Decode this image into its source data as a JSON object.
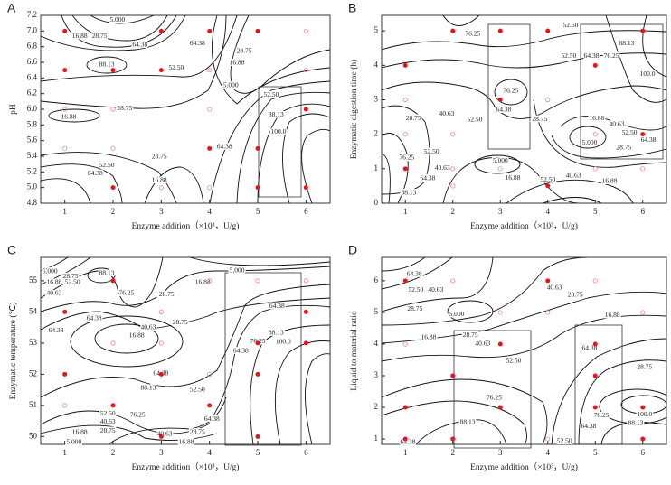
{
  "chart_data": [
    {
      "type": "contour",
      "panel_label": "A",
      "x_label": "Enzyme addition（×10³，U/g)",
      "y_label": "pH",
      "xlim": [
        0.5,
        6.5
      ],
      "xticks": [
        1,
        2,
        3,
        4,
        5,
        6
      ],
      "ylim": [
        4.8,
        7.2
      ],
      "yticks": [
        4.8,
        {
          "value": 5,
          "label": "5.0"
        },
        5.2,
        5.4,
        5.6,
        5.8,
        {
          "value": 6,
          "label": "6.0"
        },
        6.2,
        6.4,
        6.6,
        6.8,
        {
          "value": 7,
          "label": "7.0"
        },
        7.2
      ],
      "series": [
        {
          "color": "#e8141c",
          "marker": "filled",
          "x": [
            1,
            3,
            4,
            5,
            1,
            2,
            3,
            6,
            4,
            5,
            2,
            5,
            6
          ],
          "values": [
            7.0,
            7.0,
            7.0,
            7.0,
            6.5,
            6.5,
            6.5,
            6.0,
            5.5,
            5.5,
            5.0,
            5.0,
            5.0
          ]
        },
        {
          "color": "#f08a8a",
          "marker": "hollow",
          "x": [
            6,
            4,
            6,
            1,
            2,
            4,
            1,
            2,
            3,
            4
          ],
          "values": [
            7.0,
            6.5,
            6.5,
            6.0,
            6.0,
            6.0,
            5.5,
            5.5,
            5.0,
            5.0
          ]
        }
      ],
      "contour_labels": [
        {
          "text": "5.000",
          "x": 2.09,
          "y": 7.14
        },
        {
          "text": "28.75",
          "x": 1.72,
          "y": 6.93
        },
        {
          "text": "16.88",
          "x": 1.31,
          "y": 6.93
        },
        {
          "text": "64.38",
          "x": 2.56,
          "y": 6.82
        },
        {
          "text": "88.13",
          "x": 1.87,
          "y": 6.57
        },
        {
          "text": "52.50",
          "x": 3.31,
          "y": 6.53
        },
        {
          "text": "64.38",
          "x": 3.75,
          "y": 6.84
        },
        {
          "text": "28.75",
          "x": 4.72,
          "y": 6.74
        },
        {
          "text": "16.88",
          "x": 4.57,
          "y": 6.59
        },
        {
          "text": "5.000",
          "x": 4.44,
          "y": 6.3
        },
        {
          "text": "52.50",
          "x": 5.28,
          "y": 6.18
        },
        {
          "text": "88.13",
          "x": 5.38,
          "y": 5.93
        },
        {
          "text": "100.0",
          "x": 5.43,
          "y": 5.71
        },
        {
          "text": "28.75",
          "x": 2.24,
          "y": 6.01
        },
        {
          "text": "16.88",
          "x": 1.08,
          "y": 5.9
        },
        {
          "text": "28.75",
          "x": 2.96,
          "y": 5.39
        },
        {
          "text": "52.50",
          "x": 1.87,
          "y": 5.28
        },
        {
          "text": "64.38",
          "x": 1.63,
          "y": 5.18
        },
        {
          "text": "16.88",
          "x": 2.96,
          "y": 5.09
        },
        {
          "text": "64.38",
          "x": 4.31,
          "y": 5.52
        }
      ]
    },
    {
      "type": "contour",
      "panel_label": "B",
      "x_label": "Enzyme addition（×10³，U/g)",
      "y_label": "Enzymatic digestion time (h)",
      "xlim": [
        0.5,
        6.5
      ],
      "xticks": [
        1,
        2,
        3,
        4,
        5,
        6
      ],
      "ylim": [
        0,
        5.45
      ],
      "yticks": [
        0,
        1,
        2,
        3,
        4,
        5
      ],
      "series": [
        {
          "color": "#e8141c",
          "marker": "filled",
          "x": [
            2,
            3,
            4,
            6,
            1,
            5,
            3,
            6,
            1,
            4
          ],
          "values": [
            5,
            5,
            5,
            5,
            4,
            4,
            3,
            2,
            1,
            0.5
          ]
        },
        {
          "color": "#f08a8a",
          "marker": "hollow",
          "x": [
            1,
            1,
            2,
            4,
            5,
            2,
            3,
            5,
            6,
            2
          ],
          "values": [
            3,
            2,
            2,
            3,
            2,
            1,
            1,
            1,
            1,
            0.5
          ]
        }
      ],
      "contour_labels": [
        {
          "text": "76.25",
          "x": 2.42,
          "y": 4.9
        },
        {
          "text": "52.50",
          "x": 4.48,
          "y": 5.16
        },
        {
          "text": "88.13",
          "x": 5.66,
          "y": 4.63
        },
        {
          "text": "52.50",
          "x": 4.44,
          "y": 4.27
        },
        {
          "text": "64.38",
          "x": 4.92,
          "y": 4.27
        },
        {
          "text": "76.25",
          "x": 5.34,
          "y": 4.27
        },
        {
          "text": "100.0",
          "x": 6.1,
          "y": 3.74
        },
        {
          "text": "76.25",
          "x": 3.22,
          "y": 3.25
        },
        {
          "text": "64.38",
          "x": 3.07,
          "y": 2.7
        },
        {
          "text": "52.50",
          "x": 2.46,
          "y": 2.41
        },
        {
          "text": "28.75",
          "x": 1.17,
          "y": 2.46
        },
        {
          "text": "40.63",
          "x": 1.87,
          "y": 2.59
        },
        {
          "text": "28.75",
          "x": 3.83,
          "y": 2.43
        },
        {
          "text": "16.88",
          "x": 5.03,
          "y": 2.46
        },
        {
          "text": "40.63",
          "x": 5.45,
          "y": 2.28
        },
        {
          "text": "52.50",
          "x": 5.72,
          "y": 2.04
        },
        {
          "text": "64.38",
          "x": 6.12,
          "y": 1.83
        },
        {
          "text": "5.000",
          "x": 4.88,
          "y": 1.75
        },
        {
          "text": "28.75",
          "x": 5.6,
          "y": 1.6
        },
        {
          "text": "52.50",
          "x": 1.55,
          "y": 1.49
        },
        {
          "text": "76.25",
          "x": 1.03,
          "y": 1.31
        },
        {
          "text": "40.63",
          "x": 1.78,
          "y": 1.02
        },
        {
          "text": "64.38",
          "x": 1.47,
          "y": 0.71
        },
        {
          "text": "88.13",
          "x": 1.07,
          "y": 0.29
        },
        {
          "text": "5.000",
          "x": 3.0,
          "y": 1.23
        },
        {
          "text": "16.88",
          "x": 3.26,
          "y": 0.73
        },
        {
          "text": "52.50",
          "x": 4.0,
          "y": 0.68
        },
        {
          "text": "40.63",
          "x": 4.54,
          "y": 0.79
        },
        {
          "text": "16.88",
          "x": 5.3,
          "y": 0.63
        }
      ]
    },
    {
      "type": "contour",
      "panel_label": "C",
      "x_label": "Enzyme addition（×10³，U/g)",
      "y_label": "Enzymatic temperature (℃)",
      "xlim": [
        0.5,
        6.5
      ],
      "xticks": [
        1,
        2,
        3,
        4,
        5,
        6
      ],
      "ylim": [
        49.75,
        55.75
      ],
      "yticks": [
        50,
        51,
        52,
        53,
        54,
        55
      ],
      "series": [
        {
          "color": "#e8141c",
          "marker": "filled",
          "x": [
            2,
            1,
            6,
            5,
            6,
            1,
            3,
            5,
            2,
            4,
            3,
            5
          ],
          "values": [
            55,
            54,
            54,
            53,
            53,
            52,
            52,
            52,
            51,
            51,
            50,
            50
          ]
        },
        {
          "color": "#f08a8a",
          "marker": "hollow",
          "x": [
            4,
            5,
            6,
            2,
            3,
            4,
            1,
            3
          ],
          "values": [
            55,
            55,
            55,
            53,
            53,
            52,
            51,
            54
          ]
        }
      ],
      "contour_labels": [
        {
          "text": "5.000",
          "x": 0.69,
          "y": 55.29
        },
        {
          "text": "28.75",
          "x": 1.12,
          "y": 55.14
        },
        {
          "text": "16.88",
          "x": 0.78,
          "y": 54.94
        },
        {
          "text": "52.50",
          "x": 1.16,
          "y": 54.94
        },
        {
          "text": "40.63",
          "x": 0.78,
          "y": 54.59
        },
        {
          "text": "88.13",
          "x": 1.87,
          "y": 55.23
        },
        {
          "text": "76.25",
          "x": 2.28,
          "y": 54.59
        },
        {
          "text": "28.75",
          "x": 3.11,
          "y": 54.56
        },
        {
          "text": "16.88",
          "x": 3.86,
          "y": 54.94
        },
        {
          "text": "5.000",
          "x": 4.57,
          "y": 55.32
        },
        {
          "text": "64.38",
          "x": 1.61,
          "y": 53.78
        },
        {
          "text": "64.38",
          "x": 0.82,
          "y": 53.4
        },
        {
          "text": "40.63",
          "x": 2.73,
          "y": 53.49
        },
        {
          "text": "28.75",
          "x": 3.39,
          "y": 53.66
        },
        {
          "text": "16.88",
          "x": 2.49,
          "y": 53.23
        },
        {
          "text": "64.38",
          "x": 2.99,
          "y": 52.01
        },
        {
          "text": "88.13",
          "x": 2.73,
          "y": 51.55
        },
        {
          "text": "52.50",
          "x": 3.75,
          "y": 51.49
        },
        {
          "text": "76.25",
          "x": 2.51,
          "y": 50.68
        },
        {
          "text": "52.50",
          "x": 1.89,
          "y": 50.73
        },
        {
          "text": "40.63",
          "x": 1.89,
          "y": 50.47
        },
        {
          "text": "28.75",
          "x": 1.89,
          "y": 50.18
        },
        {
          "text": "16.88",
          "x": 1.31,
          "y": 50.13
        },
        {
          "text": "5.000",
          "x": 1.19,
          "y": 49.81
        },
        {
          "text": "40.63",
          "x": 3.07,
          "y": 50.07
        },
        {
          "text": "16.88",
          "x": 3.52,
          "y": 49.81
        },
        {
          "text": "28.75",
          "x": 3.75,
          "y": 50.13
        },
        {
          "text": "64.38",
          "x": 4.05,
          "y": 50.56
        },
        {
          "text": "64.38",
          "x": 5.4,
          "y": 54.18
        },
        {
          "text": "88.13",
          "x": 5.38,
          "y": 53.32
        },
        {
          "text": "76.25",
          "x": 5.0,
          "y": 53.05
        },
        {
          "text": "64.38",
          "x": 4.65,
          "y": 52.74
        },
        {
          "text": "100.0",
          "x": 5.53,
          "y": 53.03
        }
      ]
    },
    {
      "type": "contour",
      "panel_label": "D",
      "x_label": "Enzyme addition（×10³，U/g)",
      "y_label": "Liquid to material ratio",
      "xlim": [
        0.5,
        6.5
      ],
      "xticks": [
        1,
        2,
        3,
        4,
        5,
        6
      ],
      "ylim": [
        0.83,
        6.74
      ],
      "yticks": [
        1,
        2,
        3,
        4,
        5,
        6
      ],
      "series": [
        {
          "color": "#e8141c",
          "marker": "filled",
          "x": [
            1,
            4,
            3,
            5,
            2,
            5,
            1,
            3,
            5,
            6,
            1,
            2,
            6
          ],
          "values": [
            6,
            6,
            4,
            4,
            3,
            3,
            2,
            2,
            2,
            2,
            1,
            1,
            1
          ]
        },
        {
          "color": "#f08a8a",
          "marker": "hollow",
          "x": [
            2,
            5,
            1,
            6,
            3,
            4,
            4
          ],
          "values": [
            6,
            6,
            4,
            5,
            5,
            5,
            1
          ]
        }
      ],
      "contour_labels": [
        {
          "text": "64.38",
          "x": 1.19,
          "y": 6.2
        },
        {
          "text": "52.50",
          "x": 1.22,
          "y": 5.71
        },
        {
          "text": "40.63",
          "x": 1.64,
          "y": 5.71
        },
        {
          "text": "28.75",
          "x": 1.2,
          "y": 5.11
        },
        {
          "text": "5.000",
          "x": 2.08,
          "y": 4.94
        },
        {
          "text": "40.63",
          "x": 4.14,
          "y": 5.77
        },
        {
          "text": "28.75",
          "x": 4.58,
          "y": 5.54
        },
        {
          "text": "16.88",
          "x": 5.36,
          "y": 4.91
        },
        {
          "text": "16.88",
          "x": 1.49,
          "y": 4.2
        },
        {
          "text": "28.75",
          "x": 2.37,
          "y": 4.28
        },
        {
          "text": "40.63",
          "x": 2.63,
          "y": 4.0
        },
        {
          "text": "52.50",
          "x": 3.28,
          "y": 3.46
        },
        {
          "text": "64.38",
          "x": 4.88,
          "y": 3.86
        },
        {
          "text": "28.75",
          "x": 6.04,
          "y": 3.26
        },
        {
          "text": "76.25",
          "x": 2.87,
          "y": 2.29
        },
        {
          "text": "88.13",
          "x": 2.31,
          "y": 1.52
        },
        {
          "text": "76.25",
          "x": 5.13,
          "y": 1.74
        },
        {
          "text": "100.0",
          "x": 6.04,
          "y": 1.77
        },
        {
          "text": "88.13",
          "x": 5.85,
          "y": 1.49
        },
        {
          "text": "64.38",
          "x": 4.86,
          "y": 1.4
        },
        {
          "text": "52.50",
          "x": 4.35,
          "y": 0.92
        },
        {
          "text": "64.38",
          "x": 1.05,
          "y": 0.89
        }
      ]
    }
  ]
}
